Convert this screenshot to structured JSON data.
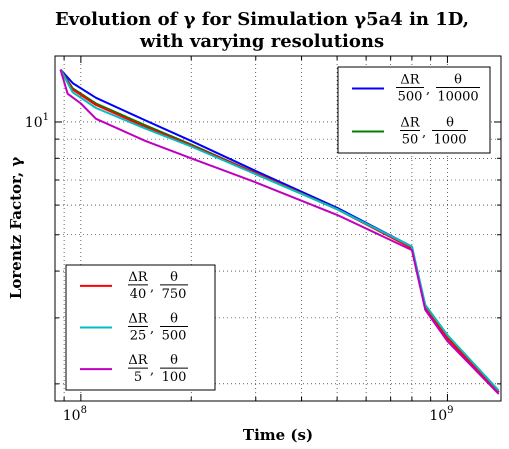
{
  "chart_data": {
    "type": "line",
    "title": {
      "line1": "Evolution of γ for Simulation γ5a4 in 1D,",
      "line2": "with varying resolutions"
    },
    "xlabel": "Time (s)",
    "ylabel": "Lorentz Factor, γ",
    "xscale": "log",
    "yscale": "log",
    "xlim": [
      85000000,
      1400000000
    ],
    "ylim": [
      1.8,
      15
    ],
    "xticks": [
      {
        "value": 100000000,
        "base": "10",
        "exp": "8"
      },
      {
        "value": 1000000000,
        "base": "10",
        "exp": "9"
      }
    ],
    "yticks": [
      {
        "value": 10,
        "base": "10",
        "exp": "1"
      }
    ],
    "grid": true,
    "legends": [
      {
        "placement": "top-right",
        "series": [
          0,
          1
        ]
      },
      {
        "placement": "bottom-left",
        "series": [
          2,
          3,
          4
        ]
      }
    ],
    "series": [
      {
        "name": "ΔR/500, θ/10000",
        "num1": "ΔR",
        "den1": "500",
        "num2": "θ",
        "den2": "10000",
        "color": "#0000ff",
        "points": [
          [
            88000000,
            13.8
          ],
          [
            95000000,
            12.7
          ],
          [
            110000000,
            11.6
          ],
          [
            150000000,
            10.1
          ],
          [
            200000000,
            8.9
          ],
          [
            300000000,
            7.4
          ],
          [
            500000000,
            5.9
          ],
          [
            800000000,
            4.65
          ],
          [
            870000000,
            3.2
          ],
          [
            1000000000,
            2.65
          ],
          [
            1380000000,
            1.9
          ]
        ]
      },
      {
        "name": "ΔR/50, θ/1000",
        "num1": "ΔR",
        "den1": "50",
        "num2": "θ",
        "den2": "1000",
        "color": "#008000",
        "points": [
          [
            88000000,
            13.8
          ],
          [
            95000000,
            12.3
          ],
          [
            110000000,
            11.2
          ],
          [
            150000000,
            9.8
          ],
          [
            200000000,
            8.7
          ],
          [
            300000000,
            7.3
          ],
          [
            500000000,
            5.85
          ],
          [
            800000000,
            4.62
          ],
          [
            870000000,
            3.2
          ],
          [
            1000000000,
            2.65
          ],
          [
            1380000000,
            1.9
          ]
        ]
      },
      {
        "name": "ΔR/40, θ/750",
        "num1": "ΔR",
        "den1": "40",
        "num2": "θ",
        "den2": "750",
        "color": "#ff0000",
        "points": [
          [
            88000000,
            13.8
          ],
          [
            95000000,
            12.2
          ],
          [
            110000000,
            11.1
          ],
          [
            150000000,
            9.7
          ],
          [
            200000000,
            8.65
          ],
          [
            300000000,
            7.3
          ],
          [
            500000000,
            5.85
          ],
          [
            800000000,
            4.6
          ],
          [
            870000000,
            3.2
          ],
          [
            1000000000,
            2.65
          ],
          [
            1380000000,
            1.9
          ]
        ]
      },
      {
        "name": "ΔR/25, θ/500",
        "num1": "ΔR",
        "den1": "25",
        "num2": "θ",
        "den2": "500",
        "color": "#00bfbf",
        "points": [
          [
            88000000,
            13.8
          ],
          [
            95000000,
            12.0
          ],
          [
            110000000,
            10.9
          ],
          [
            150000000,
            9.6
          ],
          [
            200000000,
            8.6
          ],
          [
            300000000,
            7.25
          ],
          [
            500000000,
            5.85
          ],
          [
            800000000,
            4.65
          ],
          [
            870000000,
            3.25
          ],
          [
            1000000000,
            2.7
          ],
          [
            1380000000,
            1.92
          ]
        ]
      },
      {
        "name": "ΔR/5, θ/100",
        "num1": "ΔR",
        "den1": "5",
        "num2": "θ",
        "den2": "100",
        "color": "#bf00bf",
        "points": [
          [
            88000000,
            13.8
          ],
          [
            92000000,
            11.9
          ],
          [
            100000000,
            11.2
          ],
          [
            110000000,
            10.2
          ],
          [
            150000000,
            8.9
          ],
          [
            200000000,
            8.0
          ],
          [
            300000000,
            6.9
          ],
          [
            500000000,
            5.65
          ],
          [
            800000000,
            4.55
          ],
          [
            870000000,
            3.15
          ],
          [
            1000000000,
            2.6
          ],
          [
            1380000000,
            1.88
          ]
        ]
      }
    ]
  }
}
